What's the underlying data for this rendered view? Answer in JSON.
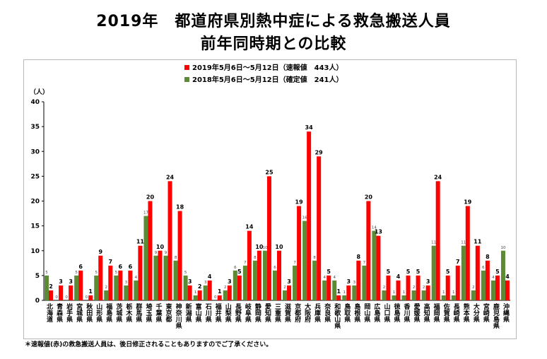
{
  "title_line1": "2019年　都道府県別熱中症による救急搬送人員",
  "title_line2": "前年同時期との比較",
  "footnote": "＊速報値(赤)の救急搬送人員は、後日修正されることもありますのでご了承ください。",
  "chart_data": {
    "type": "bar",
    "ylabel": "（人）",
    "ylim": [
      0,
      40
    ],
    "yticks": [
      0,
      5,
      10,
      15,
      20,
      25,
      30,
      35,
      40
    ],
    "grid": false,
    "legend_position": "top-center",
    "categories": [
      "北海道",
      "青森県",
      "岩手県",
      "宮城県",
      "秋田県",
      "山形県",
      "福島県",
      "茨城県",
      "栃木県",
      "群馬県",
      "埼玉県",
      "千葉県",
      "東京都",
      "神奈川県",
      "新潟県",
      "富山県",
      "石川県",
      "福井県",
      "山梨県",
      "長野県",
      "岐阜県",
      "静岡県",
      "愛知県",
      "三重県",
      "滋賀県",
      "京都府",
      "大阪府",
      "兵庫県",
      "奈良県",
      "和歌山県",
      "鳥取県",
      "島根県",
      "岡山県",
      "広島県",
      "山口県",
      "徳島県",
      "香川県",
      "愛媛県",
      "高知県",
      "福岡県",
      "佐賀県",
      "長崎県",
      "熊本県",
      "大分県",
      "宮崎県",
      "鹿児島県",
      "沖縄県"
    ],
    "series": [
      {
        "name": "2018年5月6日～5月12日（確定値　241人）",
        "color": "#5b8b34",
        "values": [
          5,
          0,
          0,
          5,
          0,
          5,
          2,
          5,
          3,
          4,
          17,
          9,
          9,
          8,
          5,
          1,
          3,
          0,
          2,
          6,
          7,
          8,
          10,
          6,
          2,
          7,
          16,
          8,
          4,
          4,
          1,
          3,
          7,
          14,
          2,
          1,
          1,
          2,
          2,
          11,
          1,
          1,
          11,
          2,
          6,
          4,
          10
        ]
      },
      {
        "name": "2019年5月6日～5月12日（速報値　443人）",
        "color": "#ff0000",
        "values": [
          2,
          3,
          3,
          6,
          1,
          9,
          7,
          6,
          6,
          11,
          20,
          10,
          24,
          18,
          3,
          2,
          4,
          1,
          3,
          5,
          14,
          10,
          25,
          10,
          3,
          19,
          34,
          29,
          5,
          1,
          3,
          8,
          20,
          13,
          5,
          4,
          5,
          5,
          3,
          24,
          5,
          7,
          19,
          11,
          8,
          5,
          4
        ]
      }
    ]
  }
}
